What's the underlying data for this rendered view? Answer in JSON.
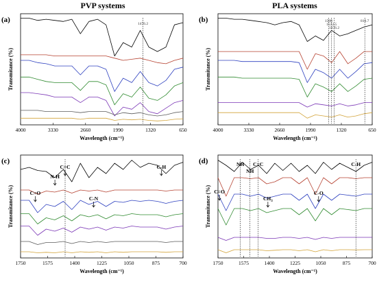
{
  "figure": {
    "titles": [
      "PVP systems",
      "PLA systems"
    ]
  },
  "chart_data": [
    {
      "type": "line",
      "panel": "(a)",
      "group_title": "PVP systems",
      "xlabel": "Wavelength (cm⁻¹)",
      "ylabel": "Transmitance (%)",
      "xlim": [
        4000,
        650
      ],
      "x_reversed": true,
      "xticks": [
        4000,
        3330,
        2660,
        1990,
        1320,
        650
      ],
      "xtick_labels": [
        "4000",
        "3330",
        "2660",
        "1990",
        "1320",
        "650"
      ],
      "grid": false,
      "series_colors": [
        "#000000",
        "#b5402f",
        "#2c3fbf",
        "#2f8a2f",
        "#7a35b5",
        "#5a5a5a",
        "#d2a237"
      ],
      "series": [
        {
          "values": [
            0.96,
            0.96,
            0.94,
            0.95,
            0.94,
            0.93,
            0.95,
            0.82,
            0.93,
            0.95,
            0.9,
            0.62,
            0.74,
            0.7,
            0.85,
            0.7,
            0.66,
            0.7,
            0.9,
            0.92
          ]
        },
        {
          "values": [
            0.63,
            0.63,
            0.63,
            0.63,
            0.62,
            0.62,
            0.62,
            0.62,
            0.62,
            0.62,
            0.62,
            0.6,
            0.58,
            0.59,
            0.6,
            0.58,
            0.56,
            0.55,
            0.58,
            0.6
          ]
        },
        {
          "values": [
            0.58,
            0.58,
            0.56,
            0.55,
            0.53,
            0.53,
            0.53,
            0.45,
            0.53,
            0.53,
            0.5,
            0.3,
            0.42,
            0.38,
            0.48,
            0.38,
            0.35,
            0.4,
            0.5,
            0.52
          ]
        },
        {
          "values": [
            0.43,
            0.43,
            0.41,
            0.39,
            0.38,
            0.38,
            0.38,
            0.31,
            0.39,
            0.39,
            0.36,
            0.18,
            0.28,
            0.25,
            0.34,
            0.24,
            0.22,
            0.27,
            0.35,
            0.38
          ]
        },
        {
          "values": [
            0.29,
            0.29,
            0.28,
            0.27,
            0.25,
            0.25,
            0.25,
            0.2,
            0.25,
            0.25,
            0.22,
            0.08,
            0.16,
            0.14,
            0.2,
            0.12,
            0.1,
            0.15,
            0.2,
            0.22
          ]
        },
        {
          "values": [
            0.13,
            0.13,
            0.13,
            0.12,
            0.12,
            0.12,
            0.12,
            0.11,
            0.12,
            0.12,
            0.12,
            0.09,
            0.11,
            0.1,
            0.11,
            0.09,
            0.08,
            0.09,
            0.11,
            0.12
          ]
        },
        {
          "values": [
            0.06,
            0.06,
            0.06,
            0.06,
            0.06,
            0.06,
            0.06,
            0.05,
            0.06,
            0.06,
            0.06,
            0.04,
            0.05,
            0.045,
            0.05,
            0.04,
            0.035,
            0.04,
            0.05,
            0.055
          ]
        }
      ],
      "annotations": [
        {
          "text": "1476.2",
          "x": 1476.2
        }
      ],
      "vlines": [
        1476.2
      ]
    },
    {
      "type": "line",
      "panel": "(b)",
      "group_title": "PLA systems",
      "xlabel": "Wavelength (cm⁻¹)",
      "ylabel": "Transmitance (%)",
      "xlim": [
        4000,
        650
      ],
      "x_reversed": true,
      "xticks": [
        4000,
        3330,
        2660,
        1990,
        1320,
        650
      ],
      "xtick_labels": [
        "4000",
        "3330",
        "2660",
        "1990",
        "1320",
        "650"
      ],
      "grid": false,
      "series_colors": [
        "#000000",
        "#b5402f",
        "#2c3fbf",
        "#2f8a2f",
        "#7a35b5",
        "#d2a237"
      ],
      "series": [
        {
          "values": [
            0.96,
            0.96,
            0.95,
            0.95,
            0.94,
            0.93,
            0.92,
            0.9,
            0.92,
            0.93,
            0.9,
            0.75,
            0.8,
            0.76,
            0.85,
            0.8,
            0.82,
            0.85,
            0.88,
            0.9
          ]
        },
        {
          "values": [
            0.66,
            0.66,
            0.66,
            0.66,
            0.66,
            0.66,
            0.66,
            0.66,
            0.66,
            0.66,
            0.66,
            0.5,
            0.64,
            0.62,
            0.56,
            0.66,
            0.55,
            0.6,
            0.66,
            0.66
          ]
        },
        {
          "values": [
            0.58,
            0.58,
            0.58,
            0.57,
            0.57,
            0.57,
            0.57,
            0.57,
            0.57,
            0.57,
            0.56,
            0.38,
            0.5,
            0.47,
            0.42,
            0.5,
            0.42,
            0.48,
            0.55,
            0.56
          ]
        },
        {
          "values": [
            0.43,
            0.43,
            0.43,
            0.42,
            0.42,
            0.42,
            0.42,
            0.42,
            0.42,
            0.42,
            0.41,
            0.25,
            0.37,
            0.34,
            0.3,
            0.37,
            0.3,
            0.35,
            0.41,
            0.42
          ]
        },
        {
          "values": [
            0.2,
            0.2,
            0.2,
            0.2,
            0.2,
            0.2,
            0.2,
            0.2,
            0.2,
            0.2,
            0.2,
            0.16,
            0.19,
            0.18,
            0.17,
            0.19,
            0.17,
            0.18,
            0.2,
            0.2
          ]
        },
        {
          "values": [
            0.11,
            0.11,
            0.11,
            0.11,
            0.11,
            0.11,
            0.11,
            0.11,
            0.11,
            0.11,
            0.11,
            0.06,
            0.09,
            0.08,
            0.07,
            0.09,
            0.07,
            0.08,
            0.1,
            0.11
          ]
        }
      ],
      "annotations": [
        {
          "text": "1598",
          "x": 1598
        },
        {
          "text": "1532.5",
          "x": 1532.5
        },
        {
          "text": "1476.2",
          "x": 1476.2
        },
        {
          "text": "810.7",
          "x": 810.7
        }
      ],
      "vlines": [
        1598,
        1532.5,
        1476.2,
        810.7
      ]
    },
    {
      "type": "line",
      "panel": "(c)",
      "xlabel": "Wavelength (cm⁻¹)",
      "ylabel": "Transmitance (%)",
      "xlim": [
        1750,
        700
      ],
      "x_reversed": true,
      "xticks": [
        1750,
        1575,
        1400,
        1225,
        1050,
        875,
        700
      ],
      "xtick_labels": [
        "1750",
        "1575",
        "1400",
        "1225",
        "1050",
        "875",
        "700"
      ],
      "grid": false,
      "series_colors": [
        "#000000",
        "#b5402f",
        "#2c3fbf",
        "#2f8a2f",
        "#7a35b5",
        "#5a5a5a",
        "#d2a237"
      ],
      "series": [
        {
          "values": [
            0.86,
            0.88,
            0.85,
            0.84,
            0.78,
            0.86,
            0.74,
            0.92,
            0.78,
            0.88,
            0.82,
            0.92,
            0.86,
            0.95,
            0.88,
            0.92,
            0.9,
            0.82,
            0.9,
            0.93
          ]
        },
        {
          "values": [
            0.66,
            0.66,
            0.62,
            0.65,
            0.64,
            0.66,
            0.63,
            0.66,
            0.65,
            0.66,
            0.64,
            0.66,
            0.66,
            0.66,
            0.66,
            0.66,
            0.66,
            0.65,
            0.66,
            0.66
          ]
        },
        {
          "values": [
            0.56,
            0.56,
            0.44,
            0.52,
            0.5,
            0.55,
            0.47,
            0.56,
            0.52,
            0.55,
            0.5,
            0.55,
            0.54,
            0.56,
            0.55,
            0.56,
            0.55,
            0.53,
            0.55,
            0.56
          ]
        },
        {
          "values": [
            0.43,
            0.43,
            0.33,
            0.39,
            0.37,
            0.41,
            0.36,
            0.42,
            0.4,
            0.42,
            0.38,
            0.42,
            0.41,
            0.43,
            0.42,
            0.42,
            0.42,
            0.4,
            0.42,
            0.43
          ]
        },
        {
          "values": [
            0.31,
            0.31,
            0.22,
            0.28,
            0.26,
            0.29,
            0.25,
            0.3,
            0.28,
            0.3,
            0.27,
            0.3,
            0.29,
            0.31,
            0.3,
            0.3,
            0.3,
            0.28,
            0.3,
            0.31
          ]
        },
        {
          "values": [
            0.16,
            0.16,
            0.13,
            0.15,
            0.15,
            0.16,
            0.14,
            0.16,
            0.15,
            0.16,
            0.15,
            0.16,
            0.16,
            0.16,
            0.16,
            0.16,
            0.16,
            0.15,
            0.16,
            0.16
          ]
        },
        {
          "values": [
            0.06,
            0.06,
            0.05,
            0.055,
            0.05,
            0.06,
            0.05,
            0.06,
            0.055,
            0.06,
            0.05,
            0.06,
            0.055,
            0.06,
            0.06,
            0.06,
            0.06,
            0.055,
            0.06,
            0.06
          ]
        }
      ],
      "annotations": [
        {
          "text": "C=O",
          "x": 1655
        },
        {
          "text": "N-H",
          "x": 1528
        },
        {
          "text": "C=C",
          "x": 1462
        },
        {
          "text": "C-N",
          "x": 1278
        },
        {
          "text": "C-H",
          "x": 840
        }
      ],
      "vlines": [
        1462
      ]
    },
    {
      "type": "line",
      "panel": "(d)",
      "xlabel": "Wavelength (cm⁻¹)",
      "ylabel": "Transmitance (%)",
      "xlim": [
        1750,
        700
      ],
      "x_reversed": true,
      "xticks": [
        1750,
        1575,
        1400,
        1225,
        1050,
        875,
        700
      ],
      "xtick_labels": [
        "1750",
        "1575",
        "1400",
        "1225",
        "1050",
        "875",
        "700"
      ],
      "grid": false,
      "series_colors": [
        "#000000",
        "#b5402f",
        "#2c3fbf",
        "#2f8a2f",
        "#7a35b5",
        "#d2a237"
      ],
      "series": [
        {
          "values": [
            0.95,
            0.9,
            0.84,
            0.93,
            0.86,
            0.9,
            0.82,
            0.92,
            0.85,
            0.92,
            0.84,
            0.9,
            0.82,
            0.93,
            0.86,
            0.92,
            0.88,
            0.84,
            0.9,
            0.93
          ]
        },
        {
          "values": [
            0.78,
            0.6,
            0.78,
            0.78,
            0.77,
            0.78,
            0.72,
            0.74,
            0.78,
            0.78,
            0.72,
            0.78,
            0.62,
            0.78,
            0.72,
            0.78,
            0.78,
            0.77,
            0.78,
            0.78
          ]
        },
        {
          "values": [
            0.62,
            0.46,
            0.62,
            0.62,
            0.6,
            0.62,
            0.58,
            0.6,
            0.62,
            0.62,
            0.56,
            0.62,
            0.48,
            0.62,
            0.56,
            0.62,
            0.61,
            0.6,
            0.62,
            0.62
          ]
        },
        {
          "values": [
            0.48,
            0.32,
            0.48,
            0.48,
            0.46,
            0.48,
            0.44,
            0.46,
            0.48,
            0.48,
            0.42,
            0.48,
            0.36,
            0.48,
            0.42,
            0.48,
            0.47,
            0.46,
            0.48,
            0.48
          ]
        },
        {
          "values": [
            0.2,
            0.17,
            0.2,
            0.2,
            0.2,
            0.2,
            0.19,
            0.19,
            0.2,
            0.2,
            0.19,
            0.2,
            0.18,
            0.2,
            0.19,
            0.2,
            0.2,
            0.2,
            0.2,
            0.2
          ]
        },
        {
          "values": [
            0.08,
            0.05,
            0.08,
            0.08,
            0.08,
            0.08,
            0.07,
            0.075,
            0.08,
            0.08,
            0.07,
            0.08,
            0.06,
            0.08,
            0.07,
            0.08,
            0.08,
            0.078,
            0.08,
            0.08
          ]
        }
      ],
      "annotations": [
        {
          "text": "NH",
          "x": 1598
        },
        {
          "text": "NH",
          "x": 1532
        },
        {
          "text": "C=C",
          "x": 1476
        },
        {
          "text": "C-H",
          "x": 811
        },
        {
          "text": "C=O",
          "x": 1740
        },
        {
          "text": "CH3",
          "x": 1410
        },
        {
          "text": "C-O",
          "x": 1065
        }
      ],
      "vlines": [
        1598,
        1532,
        1476,
        811
      ]
    }
  ]
}
